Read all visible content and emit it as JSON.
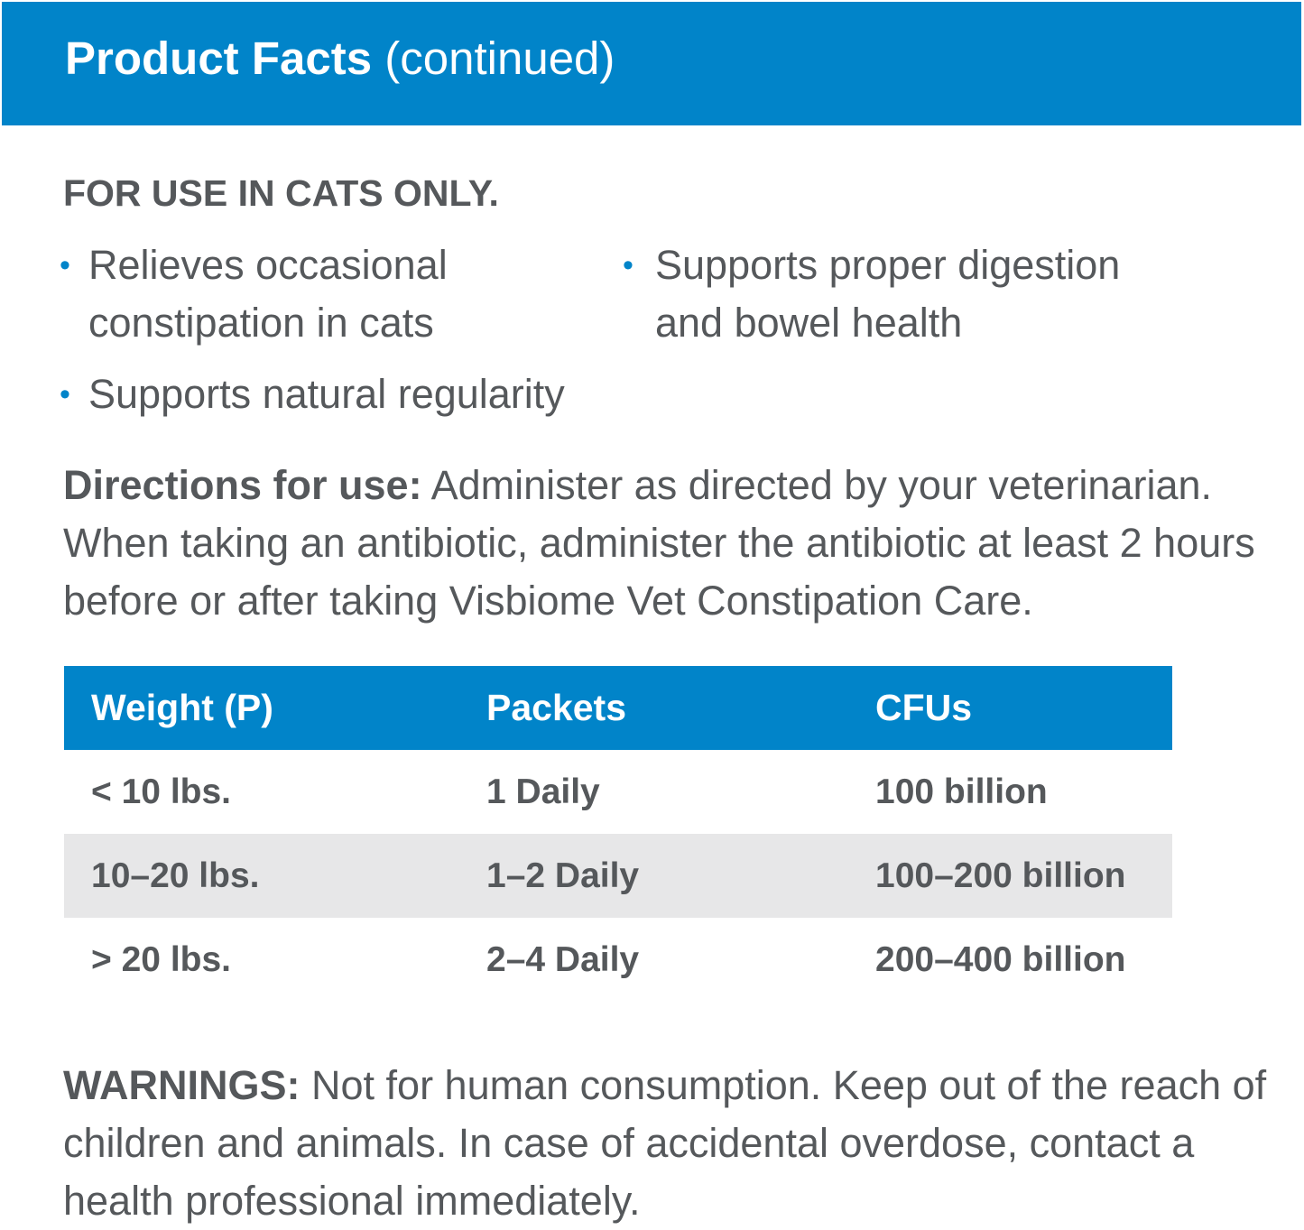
{
  "header": {
    "title_bold": "Product Facts",
    "title_suffix": "(continued)"
  },
  "species_notice": "FOR USE IN CATS ONLY.",
  "benefits": [
    {
      "line1": "Relieves occasional",
      "line2": "constipation in cats"
    },
    {
      "line1": "Supports natural regularity"
    },
    {
      "line1": "Supports proper digestion",
      "line2": "and bowel health"
    }
  ],
  "bullet_glyph": "•",
  "directions": {
    "label": "Directions for use:",
    "text": "Administer as directed by your veterinarian. When taking an antibiotic, administer the antibiotic at least 2 hours before or after taking Visbiome Vet Constipation Care."
  },
  "dosage_table": {
    "headers": [
      "Weight (P)",
      "Packets",
      "CFUs"
    ],
    "rows": [
      [
        "< 10 lbs.",
        "1 Daily",
        "100 billion"
      ],
      [
        "10–20 lbs.",
        "1–2 Daily",
        "100–200 billion"
      ],
      [
        "> 20 lbs.",
        "2–4 Daily",
        "200–400 billion"
      ]
    ]
  },
  "warnings": {
    "label": "WARNINGS:",
    "text": "Not for human consumption. Keep out of the reach of children and animals. In case of accidental overdose, contact a health professional immediately."
  },
  "colors": {
    "brand_blue": "#0184c9",
    "text_gray": "#55585b",
    "row_shade": "#e7e7e8"
  }
}
